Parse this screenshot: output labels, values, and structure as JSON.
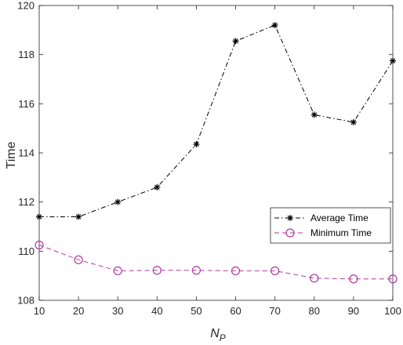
{
  "chart_data": {
    "type": "line",
    "title": "",
    "xlabel_main": "N",
    "xlabel_sub": "P",
    "ylabel": "Time",
    "x": [
      10,
      20,
      30,
      40,
      50,
      60,
      70,
      80,
      90,
      100
    ],
    "xlim": [
      10,
      100
    ],
    "ylim": [
      108,
      120
    ],
    "xticks": [
      10,
      20,
      30,
      40,
      50,
      60,
      70,
      80,
      90,
      100
    ],
    "yticks": [
      108,
      110,
      112,
      114,
      116,
      118,
      120
    ],
    "grid": false,
    "legend_position": "lower-right",
    "series": [
      {
        "name": "Average Time",
        "color": "#000000",
        "line_style": "dash-dot",
        "marker": "asterisk",
        "values": [
          111.4,
          111.4,
          112.0,
          112.6,
          114.35,
          118.55,
          119.2,
          115.55,
          115.25,
          117.75
        ]
      },
      {
        "name": "Minimum Time",
        "color": "#b03aa0",
        "line_style": "dashed",
        "marker": "circle",
        "values": [
          110.25,
          109.65,
          109.2,
          109.22,
          109.22,
          109.2,
          109.2,
          108.9,
          108.87,
          108.87
        ]
      }
    ]
  }
}
